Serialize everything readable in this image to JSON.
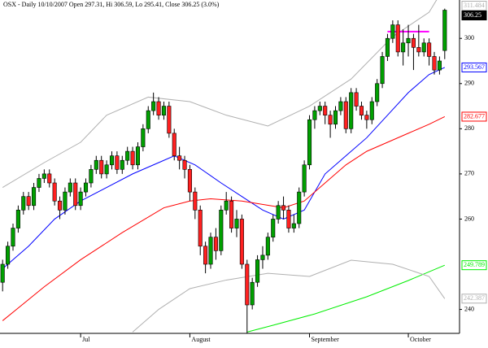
{
  "chart_data": {
    "type": "candlestick",
    "title": "OSX - Daily 10/10/2007 Open 297.31, Hi 306.59, Lo 295.41, Close 306.25 (3.0%)",
    "categories": [
      null,
      null,
      null,
      null,
      null,
      null,
      null,
      null,
      null,
      null,
      null,
      null,
      null,
      null,
      null,
      "Jul",
      null,
      null,
      null,
      null,
      null,
      null,
      null,
      null,
      null,
      null,
      null,
      null,
      null,
      null,
      null,
      null,
      null,
      null,
      null,
      null,
      "August",
      null,
      null,
      null,
      null,
      null,
      null,
      null,
      null,
      null,
      null,
      null,
      null,
      null,
      null,
      null,
      null,
      null,
      null,
      null,
      null,
      null,
      null,
      "September",
      null,
      null,
      null,
      null,
      null,
      null,
      null,
      null,
      null,
      null,
      null,
      null,
      null,
      null,
      null,
      null,
      null,
      null,
      "October",
      null,
      null,
      null,
      null,
      null,
      null,
      null
    ],
    "open": [
      246,
      250,
      254,
      258,
      262,
      265,
      263,
      267,
      269,
      270,
      268,
      264,
      262,
      266,
      268,
      263,
      266,
      268,
      271,
      273,
      270,
      272,
      274,
      271,
      273,
      275,
      272,
      276,
      280,
      284,
      286,
      283,
      285,
      279,
      274,
      273,
      271,
      266,
      262,
      254,
      250,
      256,
      253,
      262,
      264,
      258,
      260,
      250,
      241,
      246,
      251,
      252,
      256,
      260,
      263,
      262,
      258,
      259,
      266,
      272,
      282,
      284,
      285,
      283,
      281,
      284,
      286,
      280,
      288,
      285,
      283,
      282,
      286,
      290,
      296,
      300,
      303,
      297,
      299,
      300,
      298,
      297,
      299,
      296,
      293,
      297.31
    ],
    "high": [
      251,
      255,
      259,
      263,
      266,
      266,
      268,
      270,
      271,
      271,
      269,
      265,
      267,
      269,
      269,
      267,
      269,
      272,
      274,
      274,
      273,
      275,
      275,
      274,
      276,
      276,
      277,
      281,
      285,
      288,
      287,
      286,
      286,
      280,
      276,
      274,
      272,
      267,
      263,
      255,
      257,
      258,
      263,
      266,
      265,
      262,
      261,
      251,
      247,
      252,
      254,
      257,
      261,
      264,
      265,
      263,
      261,
      267,
      273,
      283,
      285,
      286,
      286,
      284,
      285,
      287,
      287,
      289,
      289,
      286,
      284,
      287,
      291,
      297,
      301,
      304,
      304,
      302,
      303,
      301,
      303,
      300,
      300,
      297,
      296,
      306.59
    ],
    "low": [
      244,
      249,
      253,
      257,
      261,
      262,
      262,
      266,
      268,
      267,
      263,
      260,
      261,
      265,
      262,
      262,
      265,
      267,
      270,
      269,
      269,
      271,
      270,
      270,
      272,
      271,
      271,
      275,
      279,
      283,
      282,
      282,
      278,
      273,
      271,
      269,
      264,
      260,
      252,
      248,
      249,
      251,
      252,
      261,
      257,
      256,
      249,
      234,
      240,
      245,
      249,
      251,
      255,
      259,
      260,
      257,
      257,
      258,
      265,
      271,
      280,
      283,
      281,
      278,
      280,
      283,
      279,
      279,
      284,
      282,
      280,
      281,
      285,
      289,
      295,
      299,
      296,
      294,
      296,
      293,
      296,
      296,
      294,
      292,
      292,
      295.41
    ],
    "close": [
      250,
      254,
      258,
      262,
      265,
      263,
      267,
      269,
      270,
      268,
      264,
      262,
      266,
      268,
      263,
      266,
      268,
      271,
      273,
      270,
      272,
      274,
      271,
      273,
      275,
      272,
      276,
      280,
      284,
      286,
      283,
      285,
      279,
      274,
      273,
      271,
      266,
      262,
      254,
      250,
      256,
      253,
      262,
      264,
      258,
      260,
      250,
      241,
      246,
      251,
      252,
      256,
      260,
      263,
      262,
      258,
      259,
      266,
      272,
      282,
      284,
      285,
      283,
      281,
      284,
      286,
      280,
      288,
      285,
      283,
      282,
      286,
      290,
      296,
      300,
      303,
      297,
      299,
      300,
      298,
      297,
      299,
      296,
      293,
      295,
      306.25
    ],
    "up_color": "#00a000",
    "down_color": "#ff2020",
    "ylim": [
      234.7,
      308.5
    ],
    "yticks": [
      240,
      260,
      270,
      280,
      290,
      300
    ],
    "overlays": [
      {
        "color": "#b0b0b0",
        "x": [
          0,
          8,
          15,
          20,
          28,
          36,
          43,
          51,
          59,
          67,
          75,
          82,
          85
        ],
        "values": [
          267,
          272.5,
          277,
          283,
          287,
          286,
          283,
          280.6,
          285,
          291,
          300.4,
          305.8,
          311.484
        ]
      },
      {
        "color": "#0000ff",
        "x": [
          0,
          5,
          10,
          15,
          20,
          25,
          30,
          33,
          37,
          42,
          46,
          50,
          54,
          58,
          62,
          66,
          70,
          74,
          78,
          82,
          85
        ],
        "values": [
          249,
          254,
          260,
          264,
          267,
          270,
          272.5,
          274,
          272,
          268,
          265,
          262,
          260,
          262,
          270,
          274,
          278,
          283,
          288,
          292,
          293.567
        ]
      },
      {
        "color": "#ff0000",
        "x": [
          0,
          8,
          15,
          23,
          31,
          36,
          40,
          46,
          54,
          58,
          62,
          66,
          70,
          74,
          78,
          82,
          85
        ],
        "values": [
          237.5,
          245,
          251,
          257,
          262.5,
          264,
          264.5,
          264,
          262.5,
          264,
          268,
          272,
          275,
          277,
          279,
          281,
          282.677
        ]
      },
      {
        "color": "#00ee00",
        "x": [
          47,
          52,
          60,
          70,
          78,
          85
        ],
        "values": [
          235,
          236.5,
          239,
          242.8,
          246.4,
          249.789
        ]
      },
      {
        "color": "#b0b0b0",
        "x": [
          25,
          30,
          36,
          43,
          51,
          59,
          67,
          75,
          82,
          85
        ],
        "values": [
          235,
          240,
          244.6,
          246.5,
          248,
          247.3,
          250.9,
          250,
          247.3,
          242.387
        ]
      }
    ],
    "resistance": {
      "x": [
        74,
        82
      ],
      "value": 301.5,
      "color": "#ff00ff"
    }
  }
}
